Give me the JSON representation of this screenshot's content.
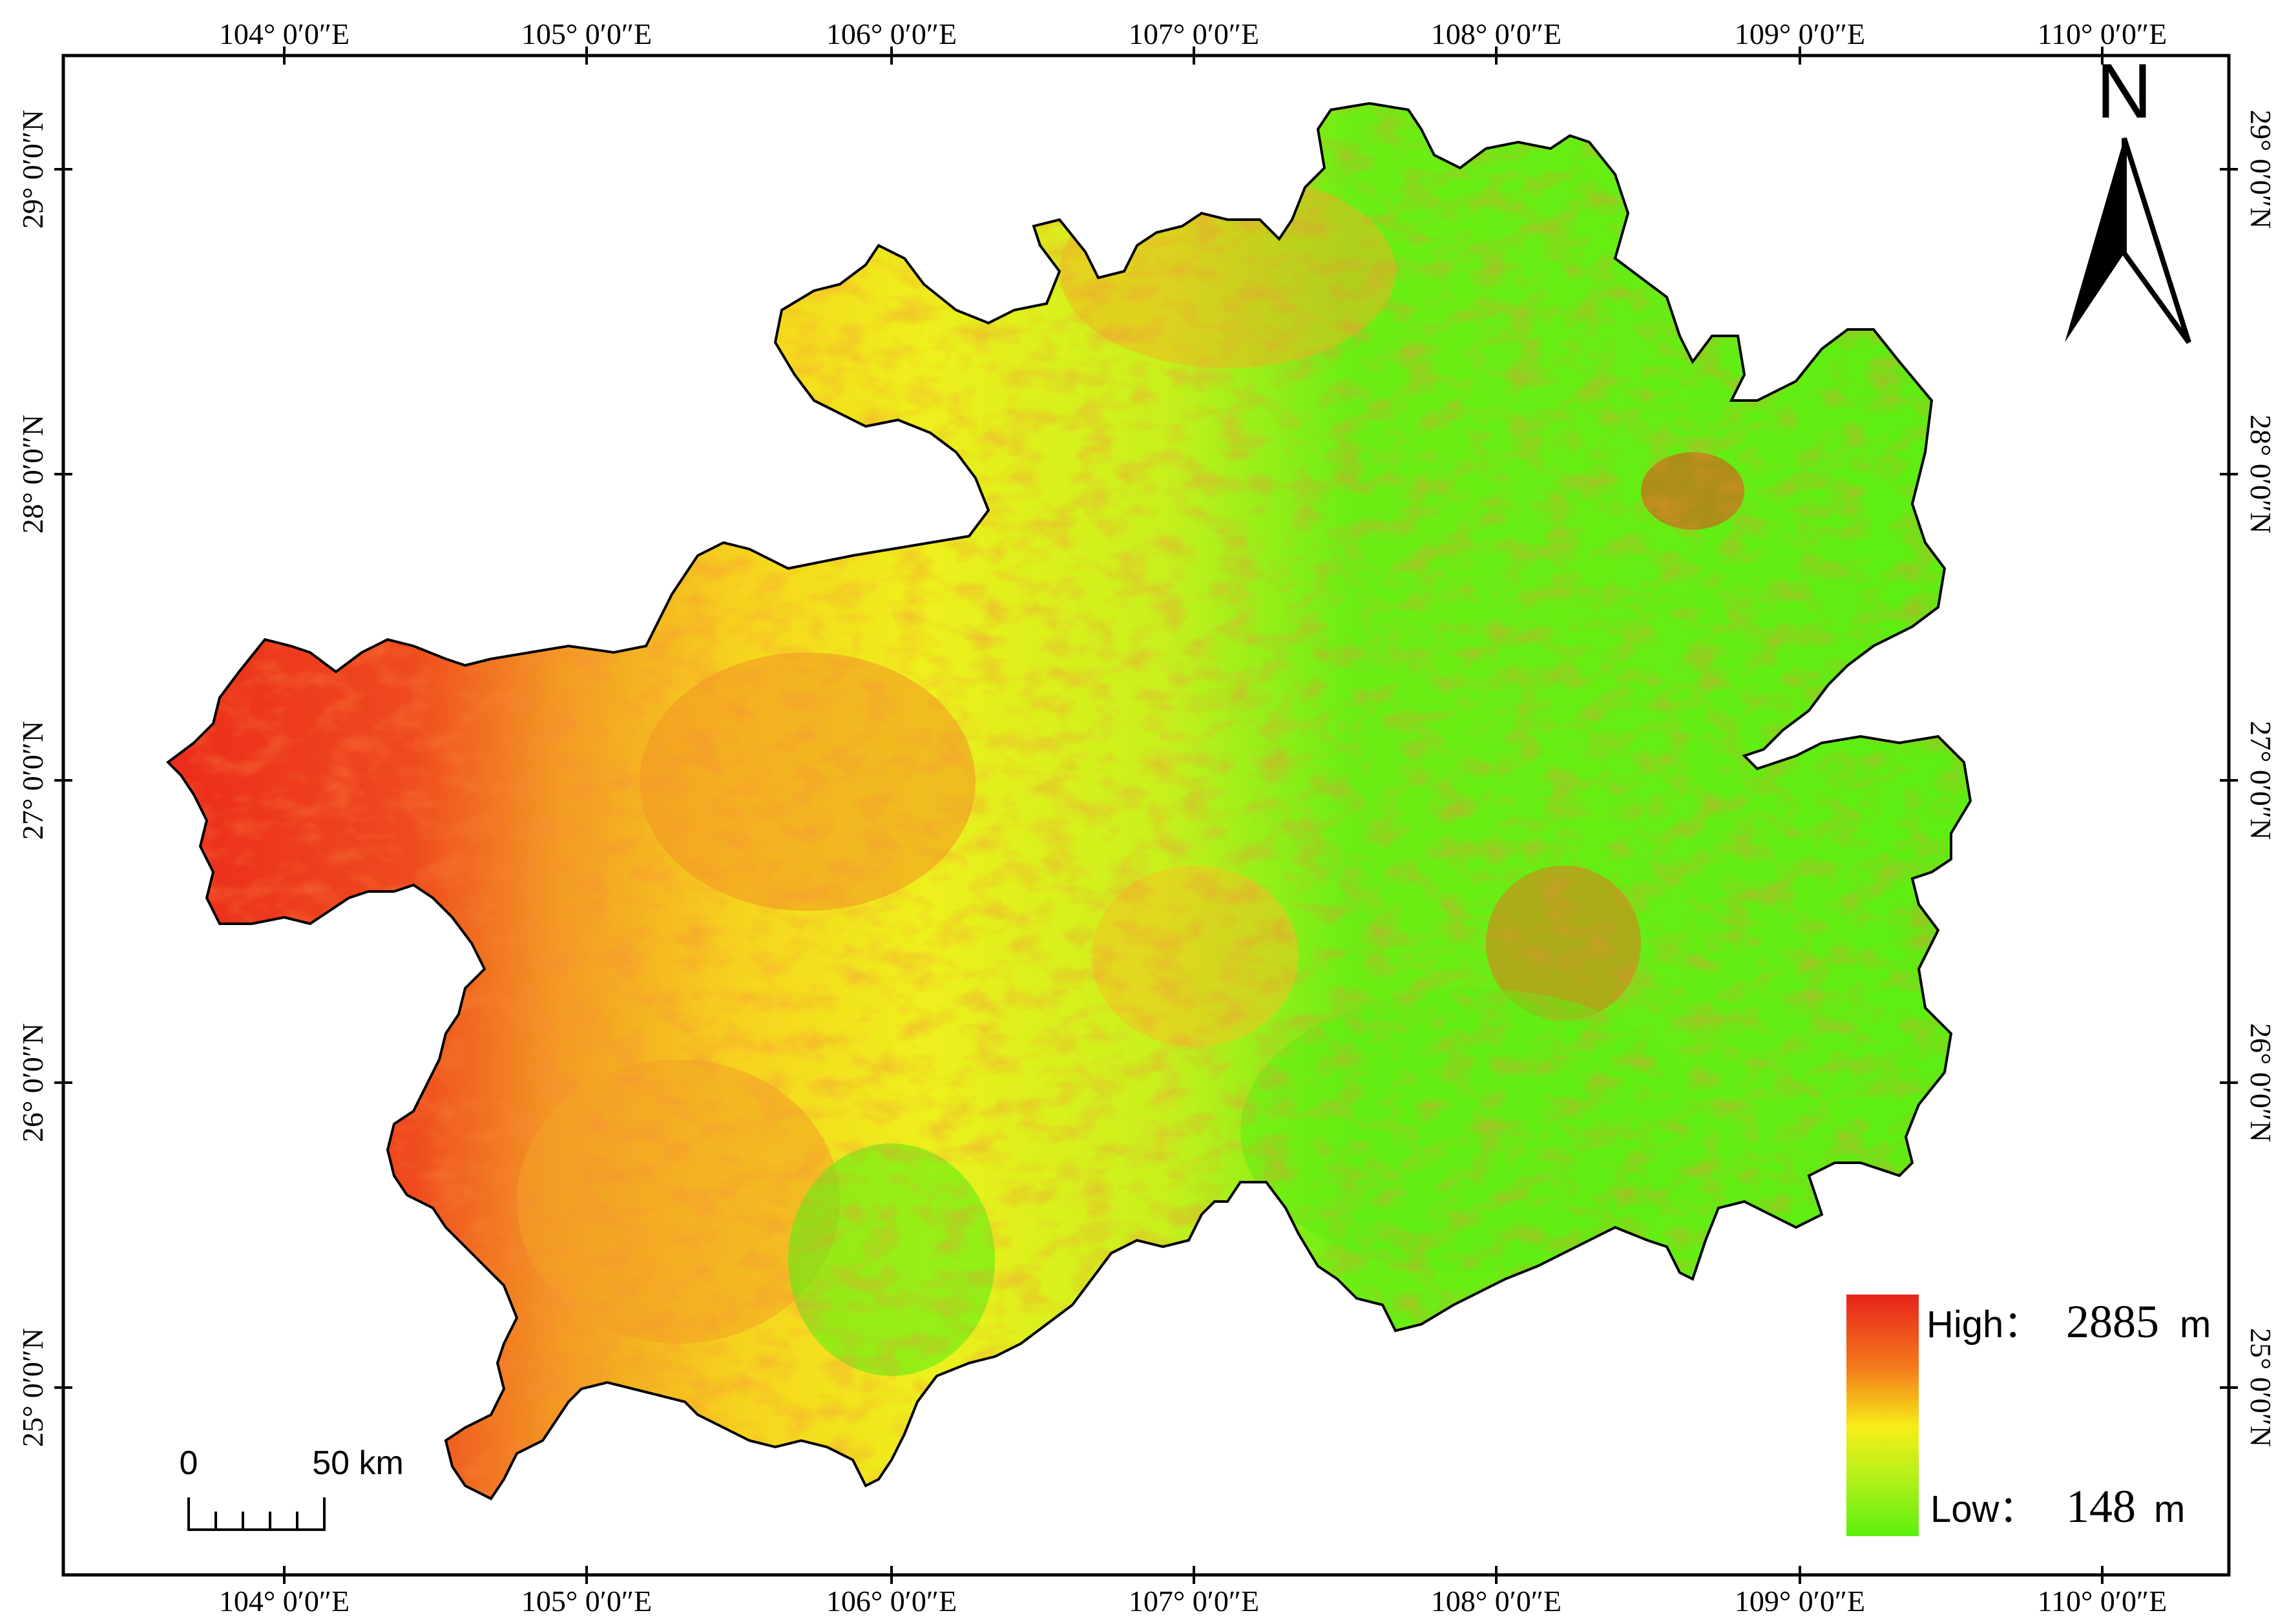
{
  "map": {
    "lon_ticks": [
      "104° 0′0″E",
      "105° 0′0″E",
      "106° 0′0″E",
      "107° 0′0″E",
      "108° 0′0″E",
      "109° 0′0″E",
      "110° 0′0″E"
    ],
    "lat_ticks": [
      "29° 0′0″N",
      "28° 0′0″N",
      "27° 0′0″N",
      "26° 0′0″N",
      "25° 0′0″N"
    ],
    "north_arrow": {
      "label": "N",
      "icon": "north-arrow-icon"
    },
    "scale_bar": {
      "zero": "0",
      "end": "50 km"
    },
    "legend": {
      "high_label": "High：",
      "high_value": "2885",
      "high_unit": "m",
      "low_label": "Low：",
      "low_value": "148",
      "low_unit": "m",
      "colors": [
        "#e8231c",
        "#f47a1c",
        "#f6ee18",
        "#b6f01a",
        "#5cf00e"
      ]
    },
    "terrain_colors": {
      "high": "#ee3a1e",
      "mid_high": "#f48a22",
      "mid": "#f4e020",
      "low": "#5cee12"
    }
  }
}
